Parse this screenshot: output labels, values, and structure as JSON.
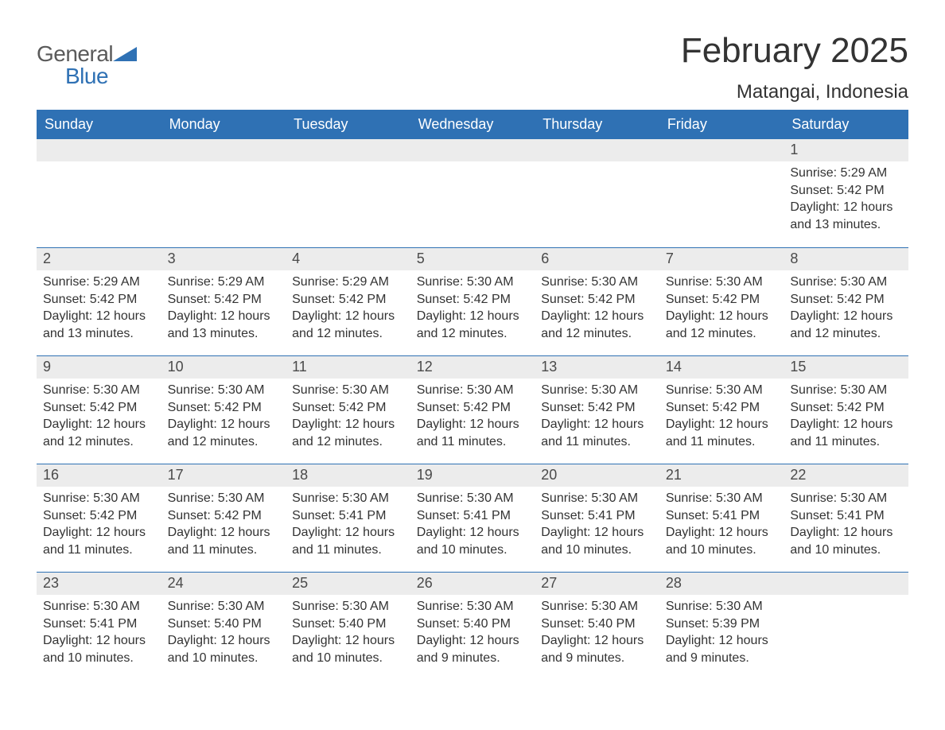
{
  "brand": {
    "word1": "General",
    "word2": "Blue",
    "word1_color": "#5a5a5a",
    "word2_color": "#2f71b4",
    "triangle_color": "#2f71b4"
  },
  "header": {
    "month_title": "February 2025",
    "location": "Matangai, Indonesia"
  },
  "colors": {
    "header_row_bg": "#2f71b4",
    "header_row_text": "#ffffff",
    "daynum_bg": "#ececec",
    "daynum_border": "#2f71b4",
    "body_text": "#333333",
    "background": "#ffffff"
  },
  "typography": {
    "month_title_fontsize": 44,
    "location_fontsize": 24,
    "weekday_fontsize": 18,
    "daynum_fontsize": 18,
    "detail_fontsize": 16,
    "font_family": "Arial, Helvetica, sans-serif"
  },
  "calendar": {
    "weekdays": [
      "Sunday",
      "Monday",
      "Tuesday",
      "Wednesday",
      "Thursday",
      "Friday",
      "Saturday"
    ],
    "labels": {
      "sunrise_prefix": "Sunrise: ",
      "sunset_prefix": "Sunset: ",
      "daylight_prefix": "Daylight: "
    },
    "weeks": [
      [
        {
          "empty": true
        },
        {
          "empty": true
        },
        {
          "empty": true
        },
        {
          "empty": true
        },
        {
          "empty": true
        },
        {
          "empty": true
        },
        {
          "day": "1",
          "sunrise": "5:29 AM",
          "sunset": "5:42 PM",
          "daylight": "12 hours and 13 minutes."
        }
      ],
      [
        {
          "day": "2",
          "sunrise": "5:29 AM",
          "sunset": "5:42 PM",
          "daylight": "12 hours and 13 minutes."
        },
        {
          "day": "3",
          "sunrise": "5:29 AM",
          "sunset": "5:42 PM",
          "daylight": "12 hours and 13 minutes."
        },
        {
          "day": "4",
          "sunrise": "5:29 AM",
          "sunset": "5:42 PM",
          "daylight": "12 hours and 12 minutes."
        },
        {
          "day": "5",
          "sunrise": "5:30 AM",
          "sunset": "5:42 PM",
          "daylight": "12 hours and 12 minutes."
        },
        {
          "day": "6",
          "sunrise": "5:30 AM",
          "sunset": "5:42 PM",
          "daylight": "12 hours and 12 minutes."
        },
        {
          "day": "7",
          "sunrise": "5:30 AM",
          "sunset": "5:42 PM",
          "daylight": "12 hours and 12 minutes."
        },
        {
          "day": "8",
          "sunrise": "5:30 AM",
          "sunset": "5:42 PM",
          "daylight": "12 hours and 12 minutes."
        }
      ],
      [
        {
          "day": "9",
          "sunrise": "5:30 AM",
          "sunset": "5:42 PM",
          "daylight": "12 hours and 12 minutes."
        },
        {
          "day": "10",
          "sunrise": "5:30 AM",
          "sunset": "5:42 PM",
          "daylight": "12 hours and 12 minutes."
        },
        {
          "day": "11",
          "sunrise": "5:30 AM",
          "sunset": "5:42 PM",
          "daylight": "12 hours and 12 minutes."
        },
        {
          "day": "12",
          "sunrise": "5:30 AM",
          "sunset": "5:42 PM",
          "daylight": "12 hours and 11 minutes."
        },
        {
          "day": "13",
          "sunrise": "5:30 AM",
          "sunset": "5:42 PM",
          "daylight": "12 hours and 11 minutes."
        },
        {
          "day": "14",
          "sunrise": "5:30 AM",
          "sunset": "5:42 PM",
          "daylight": "12 hours and 11 minutes."
        },
        {
          "day": "15",
          "sunrise": "5:30 AM",
          "sunset": "5:42 PM",
          "daylight": "12 hours and 11 minutes."
        }
      ],
      [
        {
          "day": "16",
          "sunrise": "5:30 AM",
          "sunset": "5:42 PM",
          "daylight": "12 hours and 11 minutes."
        },
        {
          "day": "17",
          "sunrise": "5:30 AM",
          "sunset": "5:42 PM",
          "daylight": "12 hours and 11 minutes."
        },
        {
          "day": "18",
          "sunrise": "5:30 AM",
          "sunset": "5:41 PM",
          "daylight": "12 hours and 11 minutes."
        },
        {
          "day": "19",
          "sunrise": "5:30 AM",
          "sunset": "5:41 PM",
          "daylight": "12 hours and 10 minutes."
        },
        {
          "day": "20",
          "sunrise": "5:30 AM",
          "sunset": "5:41 PM",
          "daylight": "12 hours and 10 minutes."
        },
        {
          "day": "21",
          "sunrise": "5:30 AM",
          "sunset": "5:41 PM",
          "daylight": "12 hours and 10 minutes."
        },
        {
          "day": "22",
          "sunrise": "5:30 AM",
          "sunset": "5:41 PM",
          "daylight": "12 hours and 10 minutes."
        }
      ],
      [
        {
          "day": "23",
          "sunrise": "5:30 AM",
          "sunset": "5:41 PM",
          "daylight": "12 hours and 10 minutes."
        },
        {
          "day": "24",
          "sunrise": "5:30 AM",
          "sunset": "5:40 PM",
          "daylight": "12 hours and 10 minutes."
        },
        {
          "day": "25",
          "sunrise": "5:30 AM",
          "sunset": "5:40 PM",
          "daylight": "12 hours and 10 minutes."
        },
        {
          "day": "26",
          "sunrise": "5:30 AM",
          "sunset": "5:40 PM",
          "daylight": "12 hours and 9 minutes."
        },
        {
          "day": "27",
          "sunrise": "5:30 AM",
          "sunset": "5:40 PM",
          "daylight": "12 hours and 9 minutes."
        },
        {
          "day": "28",
          "sunrise": "5:30 AM",
          "sunset": "5:39 PM",
          "daylight": "12 hours and 9 minutes."
        },
        {
          "empty": true
        }
      ]
    ]
  }
}
